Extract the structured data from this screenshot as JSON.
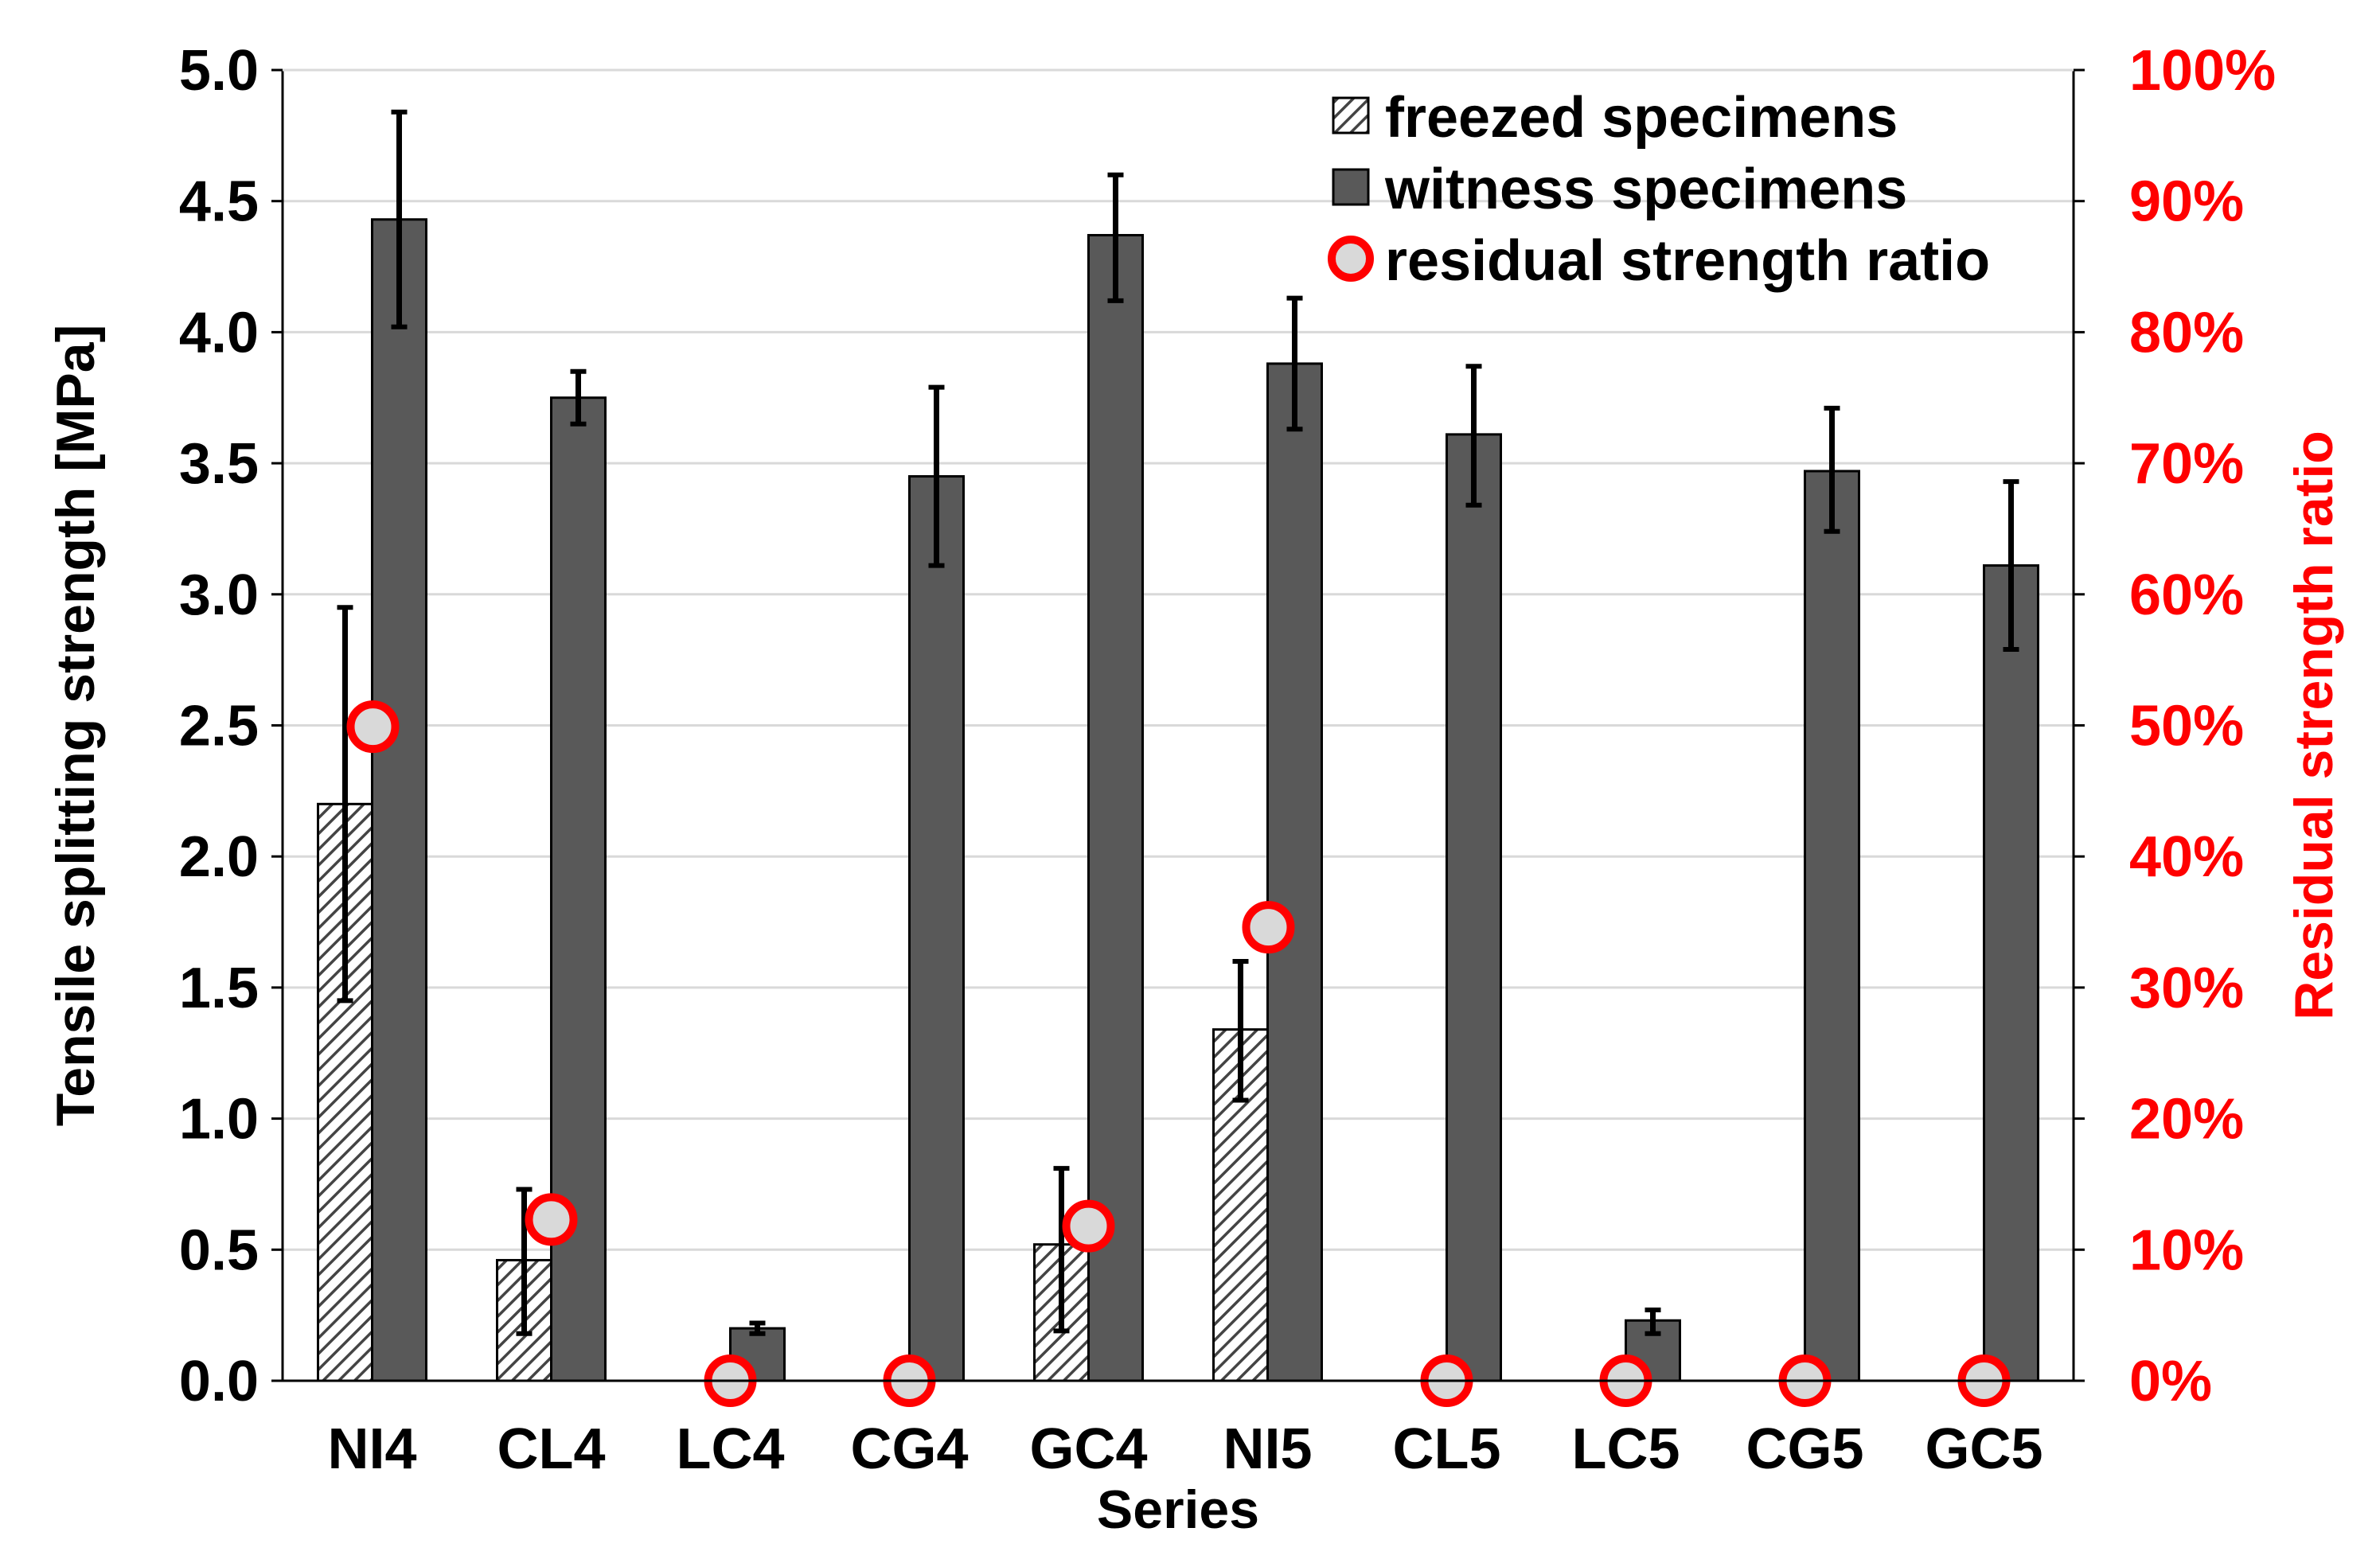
{
  "chart_data": {
    "type": "bar",
    "title": "",
    "xlabel": "Series",
    "ylabel": "Tensile splitting strength [MPa]",
    "y2label": "Residual strength ratio",
    "ylim": [
      0,
      5
    ],
    "y2lim": [
      0,
      100
    ],
    "yticks": [
      "0.0",
      "0.5",
      "1.0",
      "1.5",
      "2.0",
      "2.5",
      "3.0",
      "3.5",
      "4.0",
      "4.5",
      "5.0"
    ],
    "y2ticks": [
      "0%",
      "10%",
      "20%",
      "30%",
      "40%",
      "50%",
      "60%",
      "70%",
      "80%",
      "90%",
      "100%"
    ],
    "grid": true,
    "legend_position": "top-right",
    "categories": [
      "NI4",
      "CL4",
      "LC4",
      "CG4",
      "GC4",
      "NI5",
      "CL5",
      "LC5",
      "CG5",
      "GC5"
    ],
    "series": [
      {
        "name": "freezed specimens",
        "style": "hatched",
        "values": [
          2.2,
          0.46,
          0,
          0,
          0.52,
          1.34,
          0,
          0,
          0,
          0
        ],
        "err_low": [
          1.45,
          0.18,
          null,
          null,
          0.19,
          1.07,
          null,
          null,
          null,
          null
        ],
        "err_high": [
          2.95,
          0.73,
          null,
          null,
          0.81,
          1.6,
          null,
          null,
          null,
          null
        ]
      },
      {
        "name": "witness specimens",
        "style": "solid",
        "values": [
          4.43,
          3.75,
          0.2,
          3.45,
          4.37,
          3.88,
          3.61,
          0.23,
          3.47,
          3.11
        ],
        "err_low": [
          4.02,
          3.65,
          0.18,
          3.11,
          4.12,
          3.63,
          3.34,
          0.18,
          3.24,
          2.79
        ],
        "err_high": [
          4.84,
          3.85,
          0.22,
          3.79,
          4.6,
          4.13,
          3.87,
          0.27,
          3.71,
          3.43
        ]
      },
      {
        "name": "residual strength ratio",
        "style": "circle-marker",
        "axis": "right",
        "values": [
          49.9,
          12.3,
          0,
          0,
          11.8,
          34.6,
          0,
          0,
          0,
          0
        ]
      }
    ]
  },
  "colors": {
    "witness_bar": "#595959",
    "axis_right": "#ff0000",
    "marker_fill": "#d9d9d9",
    "marker_stroke": "#ff0000",
    "gridline": "#d9d9d9"
  }
}
